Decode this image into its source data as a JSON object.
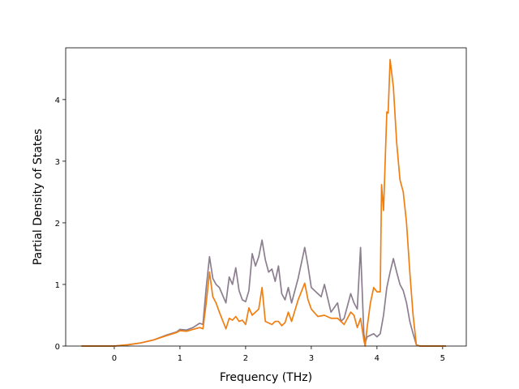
{
  "chart_data": {
    "type": "line",
    "x_label": "Frequency (THz)",
    "y_label": "Partial Density of States",
    "xlim": [
      -0.74,
      5.36
    ],
    "ylim": [
      0,
      4.84
    ],
    "xticks": [
      0,
      1,
      2,
      3,
      4,
      5
    ],
    "yticks": [
      0,
      1,
      2,
      3,
      4
    ],
    "series": [
      {
        "color": "#8c7e8f",
        "x": [
          -0.5,
          0,
          0.2,
          0.4,
          0.6,
          0.8,
          0.95,
          1.0,
          1.1,
          1.2,
          1.3,
          1.35,
          1.4,
          1.45,
          1.5,
          1.55,
          1.6,
          1.7,
          1.75,
          1.8,
          1.85,
          1.9,
          1.95,
          2.0,
          2.05,
          2.1,
          2.15,
          2.2,
          2.25,
          2.3,
          2.35,
          2.4,
          2.45,
          2.5,
          2.55,
          2.6,
          2.65,
          2.7,
          2.8,
          2.9,
          2.95,
          3.0,
          3.1,
          3.15,
          3.2,
          3.3,
          3.4,
          3.45,
          3.5,
          3.6,
          3.65,
          3.7,
          3.75,
          3.8,
          3.82,
          3.85,
          3.95,
          4.0,
          4.05,
          4.1,
          4.15,
          4.2,
          4.25,
          4.3,
          4.35,
          4.4,
          4.45,
          4.5,
          4.55,
          4.6,
          4.65,
          5.05
        ],
        "values": [
          0,
          0,
          0.02,
          0.05,
          0.1,
          0.18,
          0.23,
          0.27,
          0.26,
          0.3,
          0.37,
          0.35,
          0.95,
          1.45,
          1.1,
          1.0,
          0.95,
          0.7,
          1.12,
          1.0,
          1.27,
          0.9,
          0.75,
          0.72,
          0.9,
          1.5,
          1.3,
          1.45,
          1.72,
          1.4,
          1.2,
          1.25,
          1.05,
          1.3,
          0.85,
          0.75,
          0.95,
          0.7,
          1.1,
          1.6,
          1.3,
          0.95,
          0.85,
          0.8,
          1.0,
          0.55,
          0.7,
          0.4,
          0.45,
          0.85,
          0.7,
          0.6,
          1.6,
          0.2,
          0.05,
          0.15,
          0.2,
          0.15,
          0.2,
          0.5,
          0.95,
          1.2,
          1.42,
          1.2,
          1.0,
          0.9,
          0.7,
          0.4,
          0.2,
          0.02,
          0,
          0
        ]
      },
      {
        "color": "#f07f12",
        "x": [
          -0.5,
          0,
          0.2,
          0.4,
          0.6,
          0.8,
          0.95,
          1.0,
          1.1,
          1.2,
          1.3,
          1.35,
          1.4,
          1.45,
          1.5,
          1.55,
          1.6,
          1.7,
          1.75,
          1.8,
          1.85,
          1.9,
          1.95,
          2.0,
          2.05,
          2.1,
          2.15,
          2.2,
          2.25,
          2.3,
          2.4,
          2.45,
          2.5,
          2.55,
          2.6,
          2.65,
          2.7,
          2.8,
          2.9,
          2.95,
          3.0,
          3.1,
          3.2,
          3.3,
          3.4,
          3.5,
          3.6,
          3.65,
          3.7,
          3.75,
          3.8,
          3.82,
          3.85,
          3.9,
          3.95,
          4.0,
          4.05,
          4.07,
          4.1,
          4.15,
          4.17,
          4.2,
          4.25,
          4.3,
          4.35,
          4.4,
          4.45,
          4.5,
          4.55,
          4.6,
          4.65,
          5.05
        ],
        "values": [
          0,
          0,
          0.02,
          0.05,
          0.1,
          0.17,
          0.22,
          0.25,
          0.24,
          0.27,
          0.3,
          0.28,
          0.7,
          1.2,
          0.8,
          0.7,
          0.55,
          0.28,
          0.45,
          0.42,
          0.48,
          0.4,
          0.42,
          0.35,
          0.62,
          0.5,
          0.55,
          0.6,
          0.95,
          0.4,
          0.35,
          0.4,
          0.4,
          0.33,
          0.38,
          0.55,
          0.4,
          0.75,
          1.02,
          0.75,
          0.6,
          0.48,
          0.5,
          0.45,
          0.45,
          0.35,
          0.55,
          0.5,
          0.3,
          0.45,
          0.1,
          0.0,
          0.3,
          0.7,
          0.95,
          0.88,
          0.88,
          2.62,
          2.2,
          3.8,
          3.78,
          4.65,
          4.2,
          3.3,
          2.7,
          2.5,
          2.0,
          1.2,
          0.5,
          0.02,
          0,
          0
        ]
      }
    ]
  }
}
